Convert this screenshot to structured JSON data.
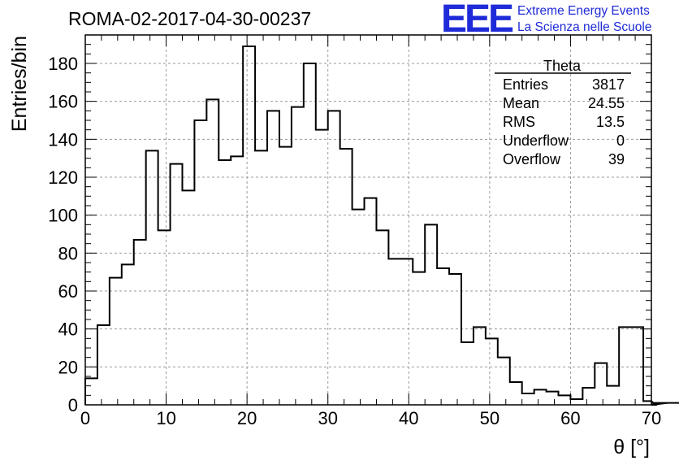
{
  "header": {
    "title": "ROMA-02-2017-04-30-00237",
    "logo_text": "EEE",
    "logo_line1": "Extreme Energy Events",
    "logo_line2": "La Scienza nelle Scuole"
  },
  "stats": {
    "title": "Theta",
    "rows": [
      {
        "label": "Entries",
        "value": "3817"
      },
      {
        "label": "Mean",
        "value": "24.55"
      },
      {
        "label": "RMS",
        "value": "13.5"
      },
      {
        "label": "Underflow",
        "value": "0"
      },
      {
        "label": "Overflow",
        "value": "39"
      }
    ]
  },
  "colors": {
    "line": "#000000",
    "grid": "#9a9a9a",
    "logo": "#1f2bd8"
  },
  "chart_data": {
    "type": "histogram",
    "xlabel": "θ [°]",
    "ylabel": "Entries/bin",
    "xlim": [
      0,
      70
    ],
    "ylim": [
      0,
      195
    ],
    "bin_width": 1.5,
    "grid": true,
    "x_ticks": [
      0,
      10,
      20,
      30,
      40,
      50,
      60,
      70
    ],
    "y_ticks": [
      0,
      20,
      40,
      60,
      80,
      100,
      120,
      140,
      160,
      180
    ],
    "values": [
      14,
      42,
      67,
      74,
      87,
      134,
      92,
      127,
      113,
      150,
      161,
      129,
      131,
      189,
      134,
      155,
      136,
      157,
      180,
      145,
      155,
      135,
      103,
      109,
      92,
      77,
      77,
      70,
      95,
      72,
      69,
      33,
      41,
      35,
      25,
      12,
      6,
      8,
      7,
      5,
      3,
      9,
      22,
      10,
      41,
      41,
      2,
      0,
      1,
      1,
      1
    ]
  }
}
